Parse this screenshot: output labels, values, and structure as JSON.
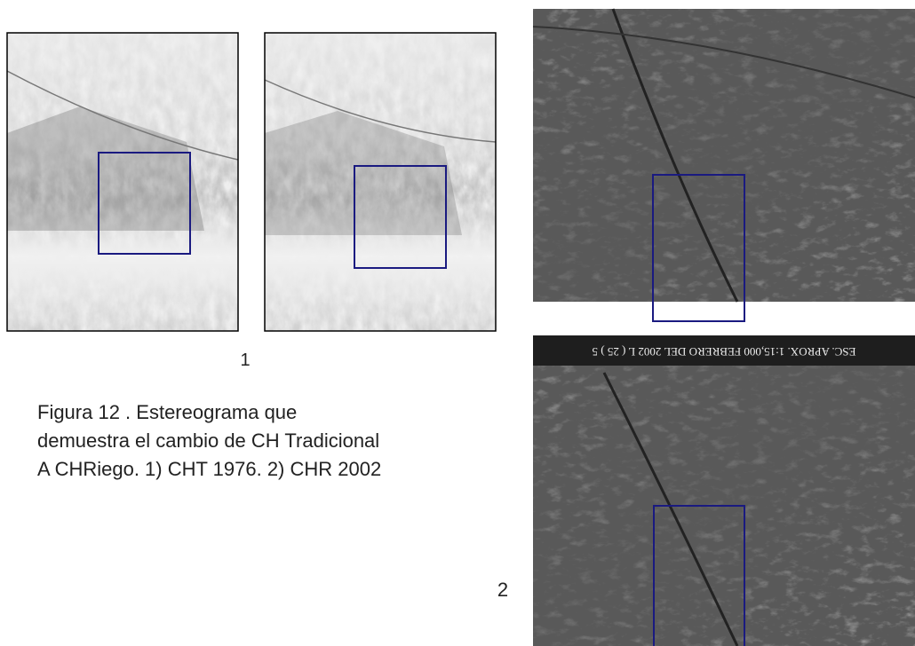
{
  "figure": {
    "panel_labels": [
      "1",
      "2"
    ],
    "caption_lines": [
      "Figura 12 . Estereograma que",
      "demuestra el cambio de CH Tradicional",
      "A CHRiego. 1) CHT 1976. 2) CHR 2002"
    ],
    "photo_strip_text": "ESC. APROX. 1:15,000   FEBRERO DEL 2002   L ( 25 ) 5"
  }
}
